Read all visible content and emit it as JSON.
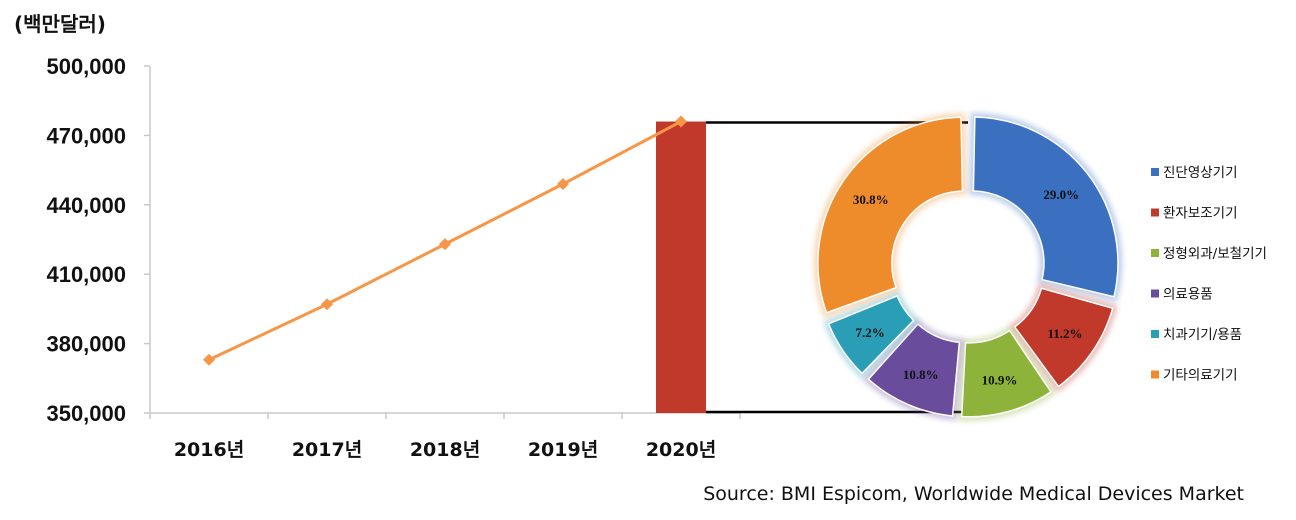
{
  "chart_data": [
    {
      "type": "line",
      "unit_label": "(백만달러)",
      "categories": [
        "2016년",
        "2017년",
        "2018년",
        "2019년",
        "2020년"
      ],
      "series": [
        {
          "values": [
            373000,
            397000,
            423000,
            449000,
            476000
          ],
          "color": "#F79646"
        }
      ],
      "highlight_bar": {
        "category": "2020년",
        "value": 476000,
        "color": "#C0392B"
      },
      "yticks": [
        "350,000",
        "380,000",
        "410,000",
        "440,000",
        "470,000",
        "500,000"
      ],
      "ylim": [
        350000,
        500000
      ],
      "grid": false
    },
    {
      "type": "pie",
      "style": "donut",
      "labels": [
        "진단영상기기",
        "환자보조기기",
        "정형외과/보철기기",
        "의료용품",
        "치과기기/용품",
        "기타의료기기"
      ],
      "values": [
        29.0,
        11.2,
        10.9,
        10.8,
        7.2,
        30.8
      ],
      "value_labels": [
        "29.0%",
        "11.2%",
        "10.9%",
        "10.8%",
        "7.2%",
        "30.8%"
      ],
      "colors": [
        "#3B6FBF",
        "#C0392B",
        "#8DB33A",
        "#6A4C9C",
        "#2A9DB7",
        "#EE8C2C"
      ],
      "legend_position": "right"
    }
  ],
  "source": "Source: BMI Espicom, Worldwide Medical Devices Market"
}
